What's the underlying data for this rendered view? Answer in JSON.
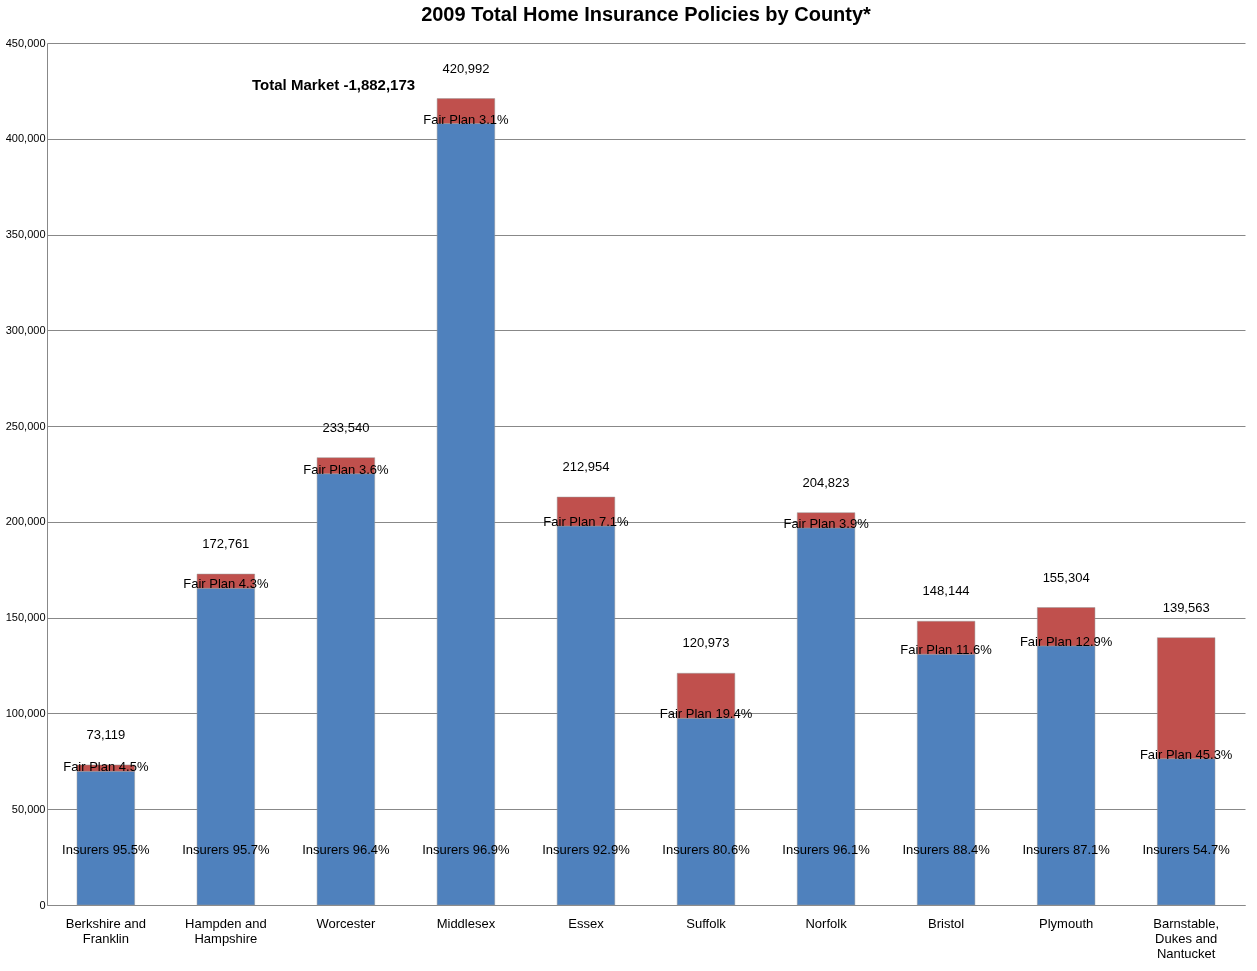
{
  "chart_data": {
    "type": "bar",
    "title": "2009 Total Home Insurance Policies by County*",
    "categories": [
      "Berkshire and Franklin",
      "Hampden and Hampshire",
      "Worcester",
      "Middlesex",
      "Essex",
      "Suffolk",
      "Norfolk",
      "Bristol",
      "Plymouth",
      "Barnstable, Dukes and Nantucket"
    ],
    "stacked": true,
    "series": [
      {
        "color": "#4f81bd",
        "values": [
          69829,
          165332,
          225133,
          407941,
          197834,
          97504,
          196835,
          130959,
          135270,
          76341
        ],
        "value_labels": [
          "Insurers 95.5%",
          "Insurers 95.7%",
          "Insurers 96.4%",
          "Insurers 96.9%",
          "Insurers 92.9%",
          "Insurers 80.6%",
          "Insurers 96.1%",
          "Insurers 88.4%",
          "Insurers 87.1%",
          "Insurers 54.7%"
        ]
      },
      {
        "color": "#c0504d",
        "values": [
          3290,
          7429,
          8407,
          13051,
          15120,
          23469,
          7988,
          17185,
          20034,
          63222
        ],
        "value_labels": [
          "Fair Plan 4.5%",
          "Fair Plan 4.3%",
          "Fair Plan 3.6%",
          "Fair Plan 3.1%",
          "Fair Plan 7.1%",
          "Fair Plan 19.4%",
          "Fair Plan 3.9%",
          "Fair Plan 11.6%",
          "Fair Plan 12.9%",
          "Fair Plan 45.3%"
        ]
      }
    ],
    "totals": [
      "73,119",
      "172,761",
      "233,540",
      "420,992",
      "212,954",
      "120,973",
      "204,823",
      "148,144",
      "155,304",
      "139,563"
    ],
    "annotations": [
      "Total Market -1,882,173"
    ],
    "ylim": [
      0,
      450000
    ],
    "yticks": [
      0,
      {
        "value": 50000,
        "label": "50,000"
      },
      {
        "value": 100000,
        "label": "100,000"
      },
      {
        "value": 150000,
        "label": "150,000"
      },
      {
        "value": 200000,
        "label": "200,000"
      },
      {
        "value": 250000,
        "label": "250,000"
      },
      {
        "value": 300000,
        "label": "300,000"
      },
      {
        "value": 350000,
        "label": "350,000"
      },
      {
        "value": 400000,
        "label": "400,000"
      },
      {
        "value": 450000,
        "label": "450,000"
      }
    ],
    "grid": "y",
    "legend": false
  }
}
